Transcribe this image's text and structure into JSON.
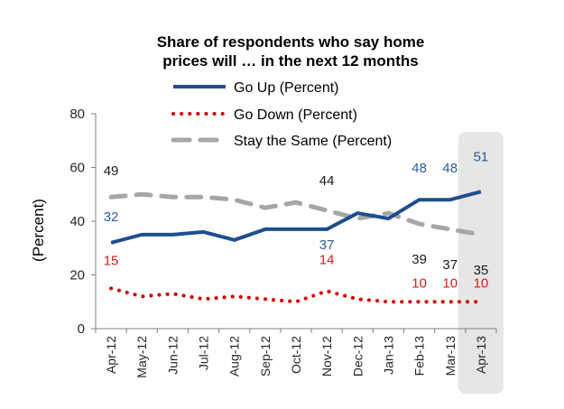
{
  "chart_data": {
    "type": "line",
    "title_lines": [
      "Share of respondents who say home",
      "prices will … in the next 12 months"
    ],
    "xlabel": "",
    "ylabel": "(Percent)",
    "ylim": [
      0,
      80
    ],
    "yticks": [
      0,
      20,
      40,
      60,
      80
    ],
    "grid": false,
    "legend_position": "top-center",
    "categories": [
      "Apr-12",
      "May-12",
      "Jun-12",
      "Jul-12",
      "Aug-12",
      "Sep-12",
      "Oct-12",
      "Nov-12",
      "Dec-12",
      "Jan-13",
      "Feb-13",
      "Mar-13",
      "Apr-13"
    ],
    "highlight_category": "Apr-13",
    "series": [
      {
        "name": "Go Up (Percent)",
        "style": "solid",
        "color": "#1F4E8C",
        "values": [
          32,
          35,
          35,
          36,
          33,
          37,
          37,
          37,
          43,
          41,
          48,
          48,
          51
        ],
        "labels": [
          {
            "index": 0,
            "text": "32"
          },
          {
            "index": 7,
            "text": "37"
          },
          {
            "index": 10,
            "text": "48"
          },
          {
            "index": 11,
            "text": "48"
          },
          {
            "index": 12,
            "text": "51"
          }
        ]
      },
      {
        "name": "Go Down (Percent)",
        "style": "dotted",
        "color": "#CC0000",
        "values": [
          15,
          12,
          13,
          11,
          12,
          11,
          10,
          14,
          11,
          10,
          10,
          10,
          10
        ],
        "labels": [
          {
            "index": 0,
            "text": "15"
          },
          {
            "index": 7,
            "text": "14"
          },
          {
            "index": 10,
            "text": "10"
          },
          {
            "index": 11,
            "text": "10"
          },
          {
            "index": 12,
            "text": "10"
          }
        ]
      },
      {
        "name": "Stay the Same (Percent)",
        "style": "dashed",
        "color": "#A6A6A6",
        "values": [
          49,
          50,
          49,
          49,
          48,
          45,
          47,
          44,
          41,
          43,
          39,
          37,
          35
        ],
        "labels": [
          {
            "index": 0,
            "text": "49"
          },
          {
            "index": 7,
            "text": "44"
          },
          {
            "index": 10,
            "text": "39"
          },
          {
            "index": 11,
            "text": "37"
          },
          {
            "index": 12,
            "text": "35"
          }
        ]
      }
    ]
  },
  "colors": {
    "axis": "#808080",
    "highlight": "#E6E6E6",
    "label_up": "#2F5C96",
    "label_down": "#CC1F1F",
    "label_same": "#1A1A1A"
  }
}
